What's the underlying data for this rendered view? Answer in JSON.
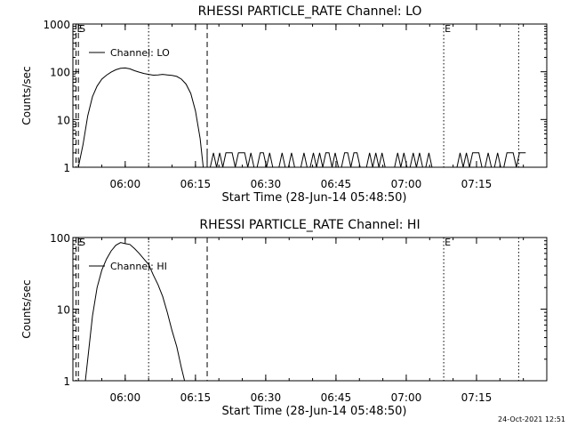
{
  "footer_timestamp": "24-Oct-2021 12:51",
  "chart_data": [
    {
      "type": "line",
      "title": "RHESSI PARTICLE_RATE Channel: LO",
      "xlabel": "Start Time (28-Jun-14 05:48:50)",
      "ylabel": "Counts/sec",
      "y_scale": "log",
      "xlim": [
        "05:48:50",
        "07:30:00"
      ],
      "ylim": [
        1,
        1000
      ],
      "x_ticks": [
        "06:00",
        "06:15",
        "06:30",
        "06:45",
        "07:00",
        "07:15"
      ],
      "y_ticks": [
        "1",
        "10",
        "100",
        "1000"
      ],
      "legend": {
        "placement": "top-left",
        "label": "Channel: LO"
      },
      "markers": [
        {
          "label": "E",
          "time": "05:49:30",
          "style": "dashed"
        },
        {
          "label": "S",
          "time": "05:50:00",
          "style": "dashed"
        },
        {
          "label": "",
          "time": "06:05:00",
          "style": "dotted"
        },
        {
          "label": "",
          "time": "06:17:30",
          "style": "dashed"
        },
        {
          "label": "E",
          "time": "07:08:00",
          "style": "dotted"
        },
        {
          "label": "",
          "time": "07:24:00",
          "style": "dotted"
        }
      ],
      "series": [
        {
          "name": "Channel: LO",
          "points": [
            [
              "05:50:00",
              1
            ],
            [
              "05:51:00",
              3
            ],
            [
              "05:52:00",
              12
            ],
            [
              "05:53:00",
              30
            ],
            [
              "05:54:00",
              50
            ],
            [
              "05:55:00",
              70
            ],
            [
              "05:56:00",
              85
            ],
            [
              "05:57:00",
              98
            ],
            [
              "05:58:00",
              110
            ],
            [
              "05:59:00",
              118
            ],
            [
              "06:00:00",
              120
            ],
            [
              "06:01:00",
              115
            ],
            [
              "06:02:00",
              105
            ],
            [
              "06:03:00",
              98
            ],
            [
              "06:04:00",
              92
            ],
            [
              "06:05:00",
              88
            ],
            [
              "06:06:00",
              85
            ],
            [
              "06:07:00",
              86
            ],
            [
              "06:08:00",
              88
            ],
            [
              "06:09:00",
              86
            ],
            [
              "06:10:00",
              84
            ],
            [
              "06:11:00",
              80
            ],
            [
              "06:12:00",
              70
            ],
            [
              "06:13:00",
              55
            ],
            [
              "06:14:00",
              35
            ],
            [
              "06:15:00",
              15
            ],
            [
              "06:16:00",
              4
            ],
            [
              "06:16:40",
              1
            ]
          ],
          "noise_segment": {
            "from": "06:17:30",
            "to": "07:26:00",
            "min": 1,
            "max": 2
          }
        }
      ]
    },
    {
      "type": "line",
      "title": "RHESSI PARTICLE_RATE Channel: HI",
      "xlabel": "Start Time (28-Jun-14 05:48:50)",
      "ylabel": "Counts/sec",
      "y_scale": "log",
      "xlim": [
        "05:48:50",
        "07:30:00"
      ],
      "ylim": [
        1,
        100
      ],
      "x_ticks": [
        "06:00",
        "06:15",
        "06:30",
        "06:45",
        "07:00",
        "07:15"
      ],
      "y_ticks": [
        "1",
        "10",
        "100"
      ],
      "legend": {
        "placement": "top-left",
        "label": "Channel: HI"
      },
      "markers": [
        {
          "label": "E",
          "time": "05:49:30",
          "style": "dashed"
        },
        {
          "label": "S",
          "time": "05:50:00",
          "style": "dashed"
        },
        {
          "label": "",
          "time": "06:05:00",
          "style": "dotted"
        },
        {
          "label": "",
          "time": "06:17:30",
          "style": "dashed"
        },
        {
          "label": "E",
          "time": "07:08:00",
          "style": "dotted"
        },
        {
          "label": "",
          "time": "07:24:00",
          "style": "dotted"
        }
      ],
      "series": [
        {
          "name": "Channel: HI",
          "points": [
            [
              "05:51:30",
              1
            ],
            [
              "05:52:00",
              2
            ],
            [
              "05:53:00",
              8
            ],
            [
              "05:54:00",
              20
            ],
            [
              "05:55:00",
              35
            ],
            [
              "05:56:00",
              50
            ],
            [
              "05:57:00",
              65
            ],
            [
              "05:58:00",
              78
            ],
            [
              "05:59:00",
              85
            ],
            [
              "06:00:00",
              82
            ],
            [
              "06:01:00",
              80
            ],
            [
              "06:02:00",
              70
            ],
            [
              "06:03:00",
              60
            ],
            [
              "06:04:00",
              50
            ],
            [
              "06:05:00",
              42
            ],
            [
              "06:06:00",
              30
            ],
            [
              "06:07:00",
              22
            ],
            [
              "06:08:00",
              15
            ],
            [
              "06:09:00",
              9
            ],
            [
              "06:10:00",
              5
            ],
            [
              "06:11:00",
              3
            ],
            [
              "06:12:00",
              1.5
            ],
            [
              "06:12:40",
              1
            ]
          ]
        }
      ]
    }
  ]
}
